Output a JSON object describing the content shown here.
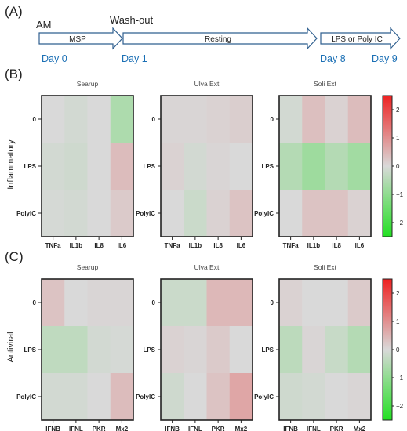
{
  "panel_labels": [
    "(A)",
    "(B)",
    "(C)"
  ],
  "timeline": {
    "am": "AM",
    "washout": "Wash-out",
    "arrows": [
      "MSP",
      "Resting",
      "LPS or Poly IC"
    ],
    "days": [
      "Day 0",
      "Day 1",
      "Day 8",
      "Day 9"
    ]
  },
  "colors": {
    "day_text": "#1a6fb5",
    "low": "#22e022",
    "mid": "#d9d9d9",
    "high": "#ee2222"
  },
  "chart_data": [
    {
      "type": "heatmap",
      "group": "Inflammatory",
      "title": "Searup",
      "rows": [
        "0",
        "LPS",
        "PolyIC"
      ],
      "columns": [
        "TNFa",
        "IL1b",
        "IL8",
        "IL6"
      ],
      "values": [
        [
          0.0,
          -0.1,
          0.0,
          -0.6
        ],
        [
          -0.1,
          -0.15,
          0.0,
          0.4
        ],
        [
          -0.05,
          -0.1,
          0.0,
          0.2
        ]
      ],
      "vmin": -2.5,
      "vmax": 2.5
    },
    {
      "type": "heatmap",
      "group": "Inflammatory",
      "title": "Ulva Ext",
      "rows": [
        "0",
        "LPS",
        "PolyIC"
      ],
      "columns": [
        "TNFa",
        "IL1b",
        "IL8",
        "IL6"
      ],
      "values": [
        [
          0.05,
          0.05,
          0.1,
          0.15
        ],
        [
          0.1,
          -0.1,
          0.05,
          0.0
        ],
        [
          0.0,
          -0.2,
          0.1,
          0.3
        ]
      ],
      "vmin": -2.5,
      "vmax": 2.5
    },
    {
      "type": "heatmap",
      "group": "Inflammatory",
      "title": "Soli Ext",
      "rows": [
        "0",
        "LPS",
        "PolyIC"
      ],
      "columns": [
        "TNFa",
        "IL1b",
        "IL8",
        "IL6"
      ],
      "values": [
        [
          -0.1,
          0.35,
          0.1,
          0.4
        ],
        [
          -0.5,
          -0.8,
          -0.5,
          -0.75
        ],
        [
          0.0,
          0.3,
          0.3,
          0.1
        ]
      ],
      "vmin": -2.5,
      "vmax": 2.5
    },
    {
      "type": "heatmap",
      "group": "Antiviral",
      "title": "Searup",
      "rows": [
        "0",
        "LPS",
        "PolyIC"
      ],
      "columns": [
        "IFNB",
        "IFNL",
        "PKR",
        "Mx2"
      ],
      "values": [
        [
          0.3,
          0.0,
          0.05,
          0.05
        ],
        [
          -0.35,
          -0.35,
          -0.1,
          -0.05
        ],
        [
          -0.1,
          -0.1,
          0.0,
          0.4
        ]
      ],
      "vmin": -2.5,
      "vmax": 2.5
    },
    {
      "type": "heatmap",
      "group": "Antiviral",
      "title": "Ulva Ext",
      "rows": [
        "0",
        "LPS",
        "PolyIC"
      ],
      "columns": [
        "IFNB",
        "IFNL",
        "PKR",
        "Mx2"
      ],
      "values": [
        [
          -0.2,
          -0.2,
          0.45,
          0.45
        ],
        [
          0.1,
          0.05,
          0.2,
          0.0
        ],
        [
          -0.15,
          0.0,
          0.3,
          0.7
        ]
      ],
      "vmin": -2.5,
      "vmax": 2.5
    },
    {
      "type": "heatmap",
      "group": "Antiviral",
      "title": "Soli Ext",
      "rows": [
        "0",
        "LPS",
        "PolyIC"
      ],
      "columns": [
        "IFNB",
        "IFNL",
        "PKR",
        "Mx2"
      ],
      "values": [
        [
          0.1,
          0.0,
          0.0,
          0.2
        ],
        [
          -0.4,
          0.05,
          -0.25,
          -0.5
        ],
        [
          -0.15,
          -0.1,
          0.0,
          0.05
        ]
      ],
      "vmin": -2.5,
      "vmax": 2.5
    }
  ],
  "colorbar": {
    "ticks": [
      "2",
      "1",
      "0",
      "−1",
      "−2"
    ],
    "values": [
      2,
      1,
      0,
      -1,
      -2
    ],
    "min": -2.5,
    "max": 2.5
  }
}
